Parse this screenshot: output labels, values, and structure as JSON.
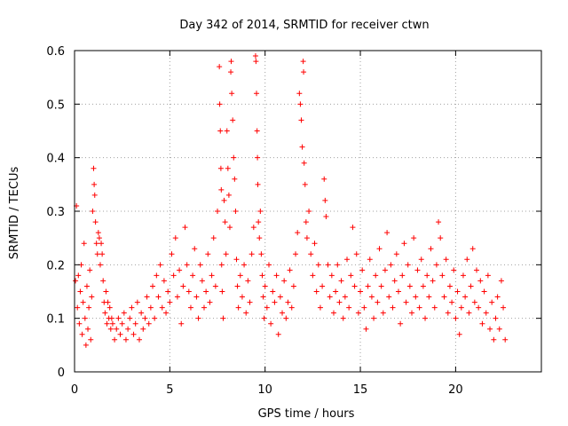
{
  "chart_data": {
    "type": "scatter",
    "title": "Day 342 of 2014, SRMTID for receiver ctwn",
    "xlabel": "GPS time / hours",
    "ylabel": "SRMTID / TECUs",
    "xlim": [
      0,
      24.5
    ],
    "ylim": [
      0,
      0.6
    ],
    "xticks": [
      "0",
      "5",
      "10",
      "15",
      "20"
    ],
    "xtick_values": [
      0,
      5,
      10,
      15,
      20
    ],
    "yticks": [
      "0",
      "0.1",
      "0.2",
      "0.3",
      "0.4",
      "0.5",
      "0.6"
    ],
    "ytick_values": [
      0,
      0.1,
      0.2,
      0.3,
      0.4,
      0.5,
      0.6
    ],
    "grid": true,
    "marker": "plus",
    "color": "#ff0000",
    "series": [
      {
        "name": "SRMTID",
        "points": [
          [
            0.05,
            0.17
          ],
          [
            0.1,
            0.31
          ],
          [
            0.15,
            0.12
          ],
          [
            0.2,
            0.18
          ],
          [
            0.25,
            0.09
          ],
          [
            0.3,
            0.15
          ],
          [
            0.35,
            0.2
          ],
          [
            0.4,
            0.07
          ],
          [
            0.45,
            0.13
          ],
          [
            0.5,
            0.24
          ],
          [
            0.55,
            0.1
          ],
          [
            0.6,
            0.05
          ],
          [
            0.65,
            0.16
          ],
          [
            0.7,
            0.08
          ],
          [
            0.75,
            0.12
          ],
          [
            0.8,
            0.19
          ],
          [
            0.85,
            0.06
          ],
          [
            0.9,
            0.14
          ],
          [
            0.95,
            0.3
          ],
          [
            1.0,
            0.38
          ],
          [
            1.03,
            0.35
          ],
          [
            1.06,
            0.33
          ],
          [
            1.1,
            0.28
          ],
          [
            1.15,
            0.24
          ],
          [
            1.2,
            0.22
          ],
          [
            1.25,
            0.26
          ],
          [
            1.3,
            0.25
          ],
          [
            1.35,
            0.2
          ],
          [
            1.4,
            0.24
          ],
          [
            1.45,
            0.22
          ],
          [
            1.5,
            0.17
          ],
          [
            1.55,
            0.13
          ],
          [
            1.6,
            0.11
          ],
          [
            1.65,
            0.15
          ],
          [
            1.7,
            0.09
          ],
          [
            1.75,
            0.13
          ],
          [
            1.8,
            0.1
          ],
          [
            1.85,
            0.12
          ],
          [
            1.9,
            0.08
          ],
          [
            1.95,
            0.1
          ],
          [
            2.0,
            0.09
          ],
          [
            2.1,
            0.06
          ],
          [
            2.2,
            0.08
          ],
          [
            2.3,
            0.1
          ],
          [
            2.4,
            0.07
          ],
          [
            2.5,
            0.09
          ],
          [
            2.6,
            0.11
          ],
          [
            2.7,
            0.06
          ],
          [
            2.8,
            0.08
          ],
          [
            2.9,
            0.1
          ],
          [
            3.0,
            0.12
          ],
          [
            3.1,
            0.07
          ],
          [
            3.2,
            0.09
          ],
          [
            3.3,
            0.13
          ],
          [
            3.4,
            0.06
          ],
          [
            3.5,
            0.11
          ],
          [
            3.6,
            0.08
          ],
          [
            3.7,
            0.1
          ],
          [
            3.8,
            0.14
          ],
          [
            3.9,
            0.09
          ],
          [
            4.0,
            0.12
          ],
          [
            4.1,
            0.16
          ],
          [
            4.2,
            0.1
          ],
          [
            4.3,
            0.18
          ],
          [
            4.4,
            0.14
          ],
          [
            4.5,
            0.2
          ],
          [
            4.6,
            0.12
          ],
          [
            4.7,
            0.17
          ],
          [
            4.8,
            0.11
          ],
          [
            4.9,
            0.15
          ],
          [
            5.0,
            0.13
          ],
          [
            5.1,
            0.22
          ],
          [
            5.2,
            0.18
          ],
          [
            5.3,
            0.25
          ],
          [
            5.4,
            0.14
          ],
          [
            5.5,
            0.19
          ],
          [
            5.6,
            0.09
          ],
          [
            5.7,
            0.16
          ],
          [
            5.8,
            0.27
          ],
          [
            5.9,
            0.2
          ],
          [
            6.0,
            0.15
          ],
          [
            6.1,
            0.12
          ],
          [
            6.2,
            0.18
          ],
          [
            6.3,
            0.23
          ],
          [
            6.4,
            0.14
          ],
          [
            6.5,
            0.1
          ],
          [
            6.6,
            0.2
          ],
          [
            6.7,
            0.17
          ],
          [
            6.8,
            0.12
          ],
          [
            6.9,
            0.15
          ],
          [
            7.0,
            0.22
          ],
          [
            7.1,
            0.13
          ],
          [
            7.2,
            0.18
          ],
          [
            7.3,
            0.25
          ],
          [
            7.4,
            0.16
          ],
          [
            7.5,
            0.3
          ],
          [
            7.6,
            0.57
          ],
          [
            7.62,
            0.5
          ],
          [
            7.65,
            0.45
          ],
          [
            7.68,
            0.38
          ],
          [
            7.7,
            0.34
          ],
          [
            7.72,
            0.2
          ],
          [
            7.75,
            0.15
          ],
          [
            7.8,
            0.1
          ],
          [
            7.85,
            0.32
          ],
          [
            7.9,
            0.28
          ],
          [
            7.95,
            0.22
          ],
          [
            8.0,
            0.45
          ],
          [
            8.05,
            0.38
          ],
          [
            8.1,
            0.33
          ],
          [
            8.15,
            0.27
          ],
          [
            8.2,
            0.56
          ],
          [
            8.22,
            0.58
          ],
          [
            8.25,
            0.52
          ],
          [
            8.3,
            0.47
          ],
          [
            8.35,
            0.4
          ],
          [
            8.4,
            0.36
          ],
          [
            8.45,
            0.3
          ],
          [
            8.5,
            0.21
          ],
          [
            8.55,
            0.16
          ],
          [
            8.6,
            0.12
          ],
          [
            8.7,
            0.18
          ],
          [
            8.8,
            0.14
          ],
          [
            8.9,
            0.2
          ],
          [
            9.0,
            0.11
          ],
          [
            9.1,
            0.17
          ],
          [
            9.2,
            0.13
          ],
          [
            9.3,
            0.22
          ],
          [
            9.4,
            0.27
          ],
          [
            9.5,
            0.59
          ],
          [
            9.52,
            0.58
          ],
          [
            9.55,
            0.52
          ],
          [
            9.58,
            0.45
          ],
          [
            9.6,
            0.4
          ],
          [
            9.62,
            0.35
          ],
          [
            9.65,
            0.28
          ],
          [
            9.7,
            0.25
          ],
          [
            9.75,
            0.3
          ],
          [
            9.8,
            0.22
          ],
          [
            9.85,
            0.18
          ],
          [
            9.9,
            0.14
          ],
          [
            9.95,
            0.1
          ],
          [
            10.0,
            0.16
          ],
          [
            10.1,
            0.12
          ],
          [
            10.2,
            0.2
          ],
          [
            10.3,
            0.09
          ],
          [
            10.4,
            0.15
          ],
          [
            10.5,
            0.13
          ],
          [
            10.6,
            0.18
          ],
          [
            10.7,
            0.07
          ],
          [
            10.8,
            0.14
          ],
          [
            10.9,
            0.11
          ],
          [
            11.0,
            0.17
          ],
          [
            11.1,
            0.1
          ],
          [
            11.2,
            0.13
          ],
          [
            11.3,
            0.19
          ],
          [
            11.4,
            0.12
          ],
          [
            11.5,
            0.16
          ],
          [
            11.6,
            0.22
          ],
          [
            11.7,
            0.26
          ],
          [
            11.8,
            0.52
          ],
          [
            11.85,
            0.5
          ],
          [
            11.9,
            0.47
          ],
          [
            11.95,
            0.42
          ],
          [
            12.0,
            0.58
          ],
          [
            12.02,
            0.56
          ],
          [
            12.05,
            0.39
          ],
          [
            12.1,
            0.35
          ],
          [
            12.15,
            0.28
          ],
          [
            12.2,
            0.25
          ],
          [
            12.3,
            0.3
          ],
          [
            12.4,
            0.22
          ],
          [
            12.5,
            0.18
          ],
          [
            12.6,
            0.24
          ],
          [
            12.7,
            0.15
          ],
          [
            12.8,
            0.2
          ],
          [
            12.9,
            0.12
          ],
          [
            13.0,
            0.16
          ],
          [
            13.1,
            0.36
          ],
          [
            13.15,
            0.32
          ],
          [
            13.2,
            0.29
          ],
          [
            13.3,
            0.2
          ],
          [
            13.4,
            0.14
          ],
          [
            13.5,
            0.18
          ],
          [
            13.6,
            0.11
          ],
          [
            13.7,
            0.15
          ],
          [
            13.8,
            0.2
          ],
          [
            13.9,
            0.13
          ],
          [
            14.0,
            0.17
          ],
          [
            14.1,
            0.1
          ],
          [
            14.2,
            0.14
          ],
          [
            14.3,
            0.21
          ],
          [
            14.4,
            0.12
          ],
          [
            14.5,
            0.18
          ],
          [
            14.6,
            0.27
          ],
          [
            14.7,
            0.16
          ],
          [
            14.8,
            0.22
          ],
          [
            14.9,
            0.11
          ],
          [
            15.0,
            0.15
          ],
          [
            15.1,
            0.19
          ],
          [
            15.2,
            0.12
          ],
          [
            15.3,
            0.08
          ],
          [
            15.4,
            0.16
          ],
          [
            15.5,
            0.21
          ],
          [
            15.6,
            0.14
          ],
          [
            15.7,
            0.1
          ],
          [
            15.8,
            0.18
          ],
          [
            15.9,
            0.13
          ],
          [
            16.0,
            0.23
          ],
          [
            16.1,
            0.16
          ],
          [
            16.2,
            0.11
          ],
          [
            16.3,
            0.19
          ],
          [
            16.4,
            0.26
          ],
          [
            16.5,
            0.14
          ],
          [
            16.6,
            0.2
          ],
          [
            16.7,
            0.12
          ],
          [
            16.8,
            0.17
          ],
          [
            16.9,
            0.22
          ],
          [
            17.0,
            0.15
          ],
          [
            17.1,
            0.09
          ],
          [
            17.2,
            0.18
          ],
          [
            17.3,
            0.24
          ],
          [
            17.4,
            0.13
          ],
          [
            17.5,
            0.2
          ],
          [
            17.6,
            0.16
          ],
          [
            17.7,
            0.11
          ],
          [
            17.8,
            0.25
          ],
          [
            17.9,
            0.14
          ],
          [
            18.0,
            0.19
          ],
          [
            18.1,
            0.12
          ],
          [
            18.2,
            0.21
          ],
          [
            18.3,
            0.16
          ],
          [
            18.4,
            0.1
          ],
          [
            18.5,
            0.18
          ],
          [
            18.6,
            0.14
          ],
          [
            18.7,
            0.23
          ],
          [
            18.8,
            0.17
          ],
          [
            18.9,
            0.12
          ],
          [
            19.0,
            0.2
          ],
          [
            19.1,
            0.28
          ],
          [
            19.2,
            0.25
          ],
          [
            19.3,
            0.18
          ],
          [
            19.4,
            0.14
          ],
          [
            19.5,
            0.21
          ],
          [
            19.6,
            0.11
          ],
          [
            19.7,
            0.16
          ],
          [
            19.8,
            0.13
          ],
          [
            19.9,
            0.19
          ],
          [
            20.0,
            0.1
          ],
          [
            20.1,
            0.15
          ],
          [
            20.2,
            0.07
          ],
          [
            20.3,
            0.12
          ],
          [
            20.4,
            0.18
          ],
          [
            20.5,
            0.14
          ],
          [
            20.6,
            0.21
          ],
          [
            20.7,
            0.11
          ],
          [
            20.8,
            0.16
          ],
          [
            20.9,
            0.23
          ],
          [
            21.0,
            0.13
          ],
          [
            21.1,
            0.19
          ],
          [
            21.2,
            0.12
          ],
          [
            21.3,
            0.17
          ],
          [
            21.4,
            0.09
          ],
          [
            21.5,
            0.15
          ],
          [
            21.6,
            0.11
          ],
          [
            21.7,
            0.18
          ],
          [
            21.8,
            0.08
          ],
          [
            21.9,
            0.13
          ],
          [
            22.0,
            0.06
          ],
          [
            22.1,
            0.1
          ],
          [
            22.2,
            0.14
          ],
          [
            22.3,
            0.08
          ],
          [
            22.4,
            0.17
          ],
          [
            22.5,
            0.12
          ],
          [
            22.6,
            0.06
          ]
        ]
      }
    ]
  }
}
